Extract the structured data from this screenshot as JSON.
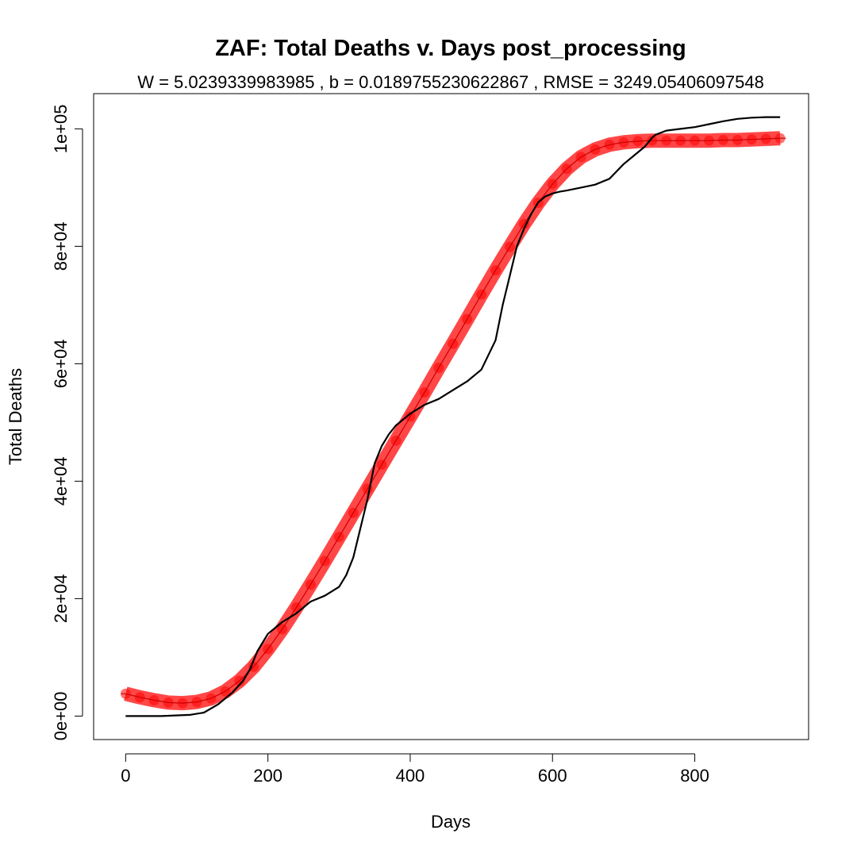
{
  "chart_data": {
    "type": "line",
    "title": "ZAF: Total Deaths v. Days post_processing",
    "subtitle": "W = 5.0239339983985 , b = 0.0189755230622867 , RMSE = 3249.05406097548",
    "xlabel": "Days",
    "ylabel": "Total Deaths",
    "xlim": [
      -45,
      960
    ],
    "ylim": [
      -4000,
      106000
    ],
    "x_ticks": [
      0,
      200,
      400,
      600,
      800
    ],
    "x_tick_labels": [
      "0",
      "200",
      "400",
      "600",
      "800"
    ],
    "y_ticks": [
      0,
      20000,
      40000,
      60000,
      80000,
      100000
    ],
    "y_tick_labels": [
      "0e+00",
      "2e+04",
      "4e+04",
      "6e+04",
      "8e+04",
      "1e+05"
    ],
    "grid": false,
    "legend": "none",
    "series": [
      {
        "role": "observed",
        "color": "#000000",
        "x": [
          0,
          50,
          90,
          110,
          130,
          150,
          165,
          175,
          185,
          200,
          220,
          240,
          260,
          280,
          300,
          310,
          320,
          330,
          340,
          350,
          360,
          370,
          380,
          390,
          400,
          420,
          440,
          460,
          480,
          500,
          520,
          530,
          540,
          550,
          560,
          570,
          580,
          590,
          600,
          610,
          620,
          640,
          660,
          680,
          700,
          710,
          730,
          740,
          745,
          760,
          780,
          800,
          820,
          840,
          860,
          880,
          900,
          920
        ],
        "y": [
          0,
          0,
          200,
          600,
          2000,
          4000,
          6000,
          8000,
          11000,
          14000,
          16000,
          17500,
          19500,
          20500,
          22000,
          24000,
          27000,
          32000,
          37000,
          43000,
          46000,
          48000,
          49500,
          50500,
          51500,
          53000,
          54000,
          55500,
          57000,
          59000,
          64000,
          70000,
          75000,
          80000,
          83000,
          85500,
          87500,
          88500,
          89000,
          89300,
          89500,
          90000,
          90500,
          91500,
          94000,
          95000,
          97000,
          98500,
          99000,
          99700,
          100000,
          100300,
          100800,
          101300,
          101700,
          101900,
          102000,
          102000
        ]
      },
      {
        "role": "fitted",
        "color": "#ff0000",
        "x": [
          0,
          20,
          40,
          60,
          80,
          100,
          120,
          140,
          160,
          180,
          200,
          220,
          240,
          260,
          280,
          300,
          320,
          340,
          360,
          380,
          400,
          420,
          440,
          460,
          480,
          500,
          520,
          540,
          560,
          580,
          600,
          620,
          640,
          660,
          680,
          700,
          720,
          740,
          760,
          780,
          800,
          820,
          840,
          860,
          880,
          900,
          920
        ],
        "y": [
          3800,
          3200,
          2700,
          2300,
          2200,
          2400,
          3000,
          4200,
          6000,
          8400,
          11400,
          14800,
          18500,
          22400,
          26400,
          30500,
          34600,
          38700,
          42800,
          46900,
          51000,
          55100,
          59300,
          63400,
          67600,
          71800,
          75900,
          79900,
          83800,
          87400,
          90600,
          93200,
          95200,
          96500,
          97300,
          97700,
          97900,
          98000,
          98000,
          98000,
          98000,
          98000,
          98100,
          98100,
          98200,
          98300,
          98400
        ]
      }
    ]
  }
}
